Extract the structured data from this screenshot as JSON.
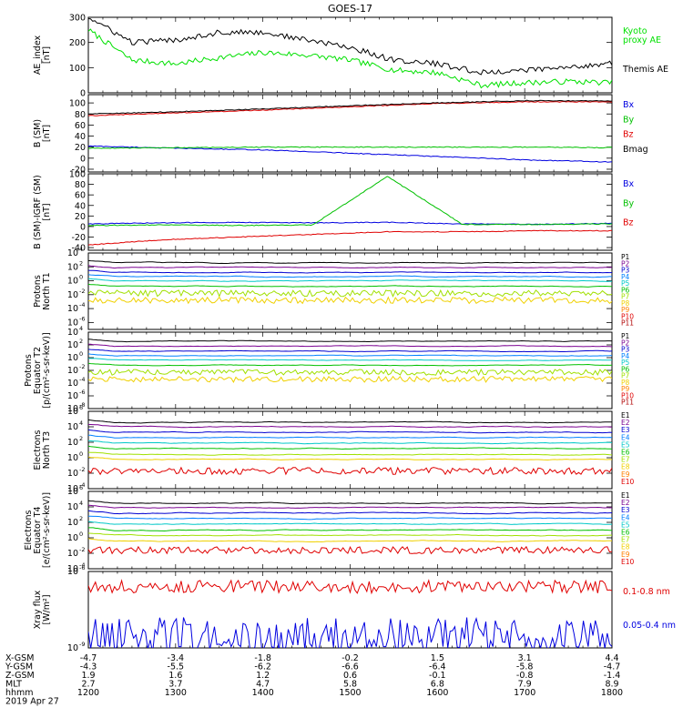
{
  "title": "GOES-17",
  "time_label": "hhmm",
  "date_label": "2019 Apr 27",
  "orbit": {
    "times": [
      "1200",
      "1300",
      "1400",
      "1500",
      "1600",
      "1700",
      "1800"
    ],
    "rows": [
      {
        "label": "X-GSM",
        "values": [
          "-4.7",
          "-3.4",
          "-1.8",
          "-0.2",
          "1.5",
          "3.1",
          "4.4"
        ]
      },
      {
        "label": "Y-GSM",
        "values": [
          "-4.3",
          "-5.5",
          "-6.2",
          "-6.6",
          "-6.4",
          "-5.8",
          "-4.7"
        ]
      },
      {
        "label": "Z-GSM",
        "values": [
          "1.9",
          "1.6",
          "1.2",
          "0.6",
          "-0.1",
          "-0.8",
          "-1.4"
        ]
      },
      {
        "label": "MLT",
        "values": [
          "2.7",
          "3.7",
          "4.7",
          "5.8",
          "6.8",
          "7.9",
          "8.9"
        ]
      }
    ]
  },
  "chart_data": [
    {
      "type": "line",
      "panel": "ae_index",
      "ylabel": "AE_index\n[nT]",
      "ylim": [
        0,
        300
      ],
      "yticks": [
        "0",
        "100",
        "200",
        "300"
      ],
      "x": [
        "12:00",
        "12:30",
        "13:00",
        "13:30",
        "14:00",
        "14:30",
        "15:00",
        "15:30",
        "16:00",
        "16:30",
        "17:00",
        "17:30",
        "18:00"
      ],
      "series": [
        {
          "name": "Kyoto\nproxy AE",
          "color": "#00e000",
          "values": [
            250,
            130,
            115,
            140,
            160,
            150,
            130,
            90,
            80,
            30,
            40,
            45,
            40
          ]
        },
        {
          "name": "Themis AE",
          "color": "#000000",
          "values": [
            300,
            200,
            210,
            240,
            240,
            210,
            180,
            130,
            115,
            80,
            90,
            100,
            120
          ]
        }
      ]
    },
    {
      "type": "line",
      "panel": "b_sm",
      "ylabel": "B (SM)\n[nT]",
      "ylim": [
        -25,
        115
      ],
      "yticks": [
        "-20",
        "0",
        "20",
        "40",
        "60",
        "80",
        "100"
      ],
      "x": [
        "12:00",
        "13:00",
        "14:00",
        "15:00",
        "16:00",
        "17:00",
        "18:00"
      ],
      "series": [
        {
          "name": "Bx",
          "color": "#0000e0",
          "values": [
            22,
            18,
            15,
            9,
            3,
            -3,
            -7
          ]
        },
        {
          "name": "By",
          "color": "#00c000",
          "values": [
            18,
            19,
            20,
            20,
            20,
            20,
            19
          ]
        },
        {
          "name": "Bz",
          "color": "#e00000",
          "values": [
            77,
            82,
            87,
            93,
            99,
            102,
            102
          ]
        },
        {
          "name": "Bmag",
          "color": "#000000",
          "values": [
            80,
            84,
            89,
            95,
            100,
            104,
            104
          ]
        }
      ]
    },
    {
      "type": "line",
      "panel": "b_minus_igrf",
      "ylabel": "B (SM)-IGRF (SM)\n[nT]",
      "ylim": [
        -45,
        100
      ],
      "yticks": [
        "-40",
        "-20",
        "0",
        "20",
        "40",
        "60",
        "80",
        "100"
      ],
      "x": [
        "12:00",
        "13:00",
        "14:00",
        "15:00",
        "15:30",
        "16:00",
        "17:00",
        "18:00"
      ],
      "series": [
        {
          "name": "Bx",
          "color": "#0000e0",
          "values": [
            5,
            7,
            8,
            7,
            8,
            5,
            4,
            6
          ]
        },
        {
          "name": "By",
          "color": "#00c000",
          "values": [
            2,
            3,
            2,
            3,
            95,
            4,
            4,
            5
          ]
        },
        {
          "name": "Bz",
          "color": "#e00000",
          "values": [
            -35,
            -25,
            -20,
            -15,
            -10,
            -10,
            -8,
            -8
          ]
        }
      ]
    },
    {
      "type": "line",
      "panel": "protons_t1",
      "ylabel": "Protons\nNorth T1",
      "scale": "log",
      "ylim_exp": [
        -7,
        4
      ],
      "ytick_exps": [
        4,
        2,
        0,
        -2,
        -4,
        -6
      ],
      "series": [
        {
          "name": "P1",
          "color": "#000000",
          "log_value": 2.6
        },
        {
          "name": "P2",
          "color": "#7a0090",
          "log_value": 1.9
        },
        {
          "name": "P3",
          "color": "#0000d0",
          "log_value": 1.2
        },
        {
          "name": "P4",
          "color": "#0080ff",
          "log_value": 0.6
        },
        {
          "name": "P5",
          "color": "#00c8c8",
          "log_value": 0.0
        },
        {
          "name": "P6",
          "color": "#00c000",
          "log_value": -0.8
        },
        {
          "name": "P7",
          "color": "#a0e000",
          "log_value": -1.8
        },
        {
          "name": "P8",
          "color": "#f0d000",
          "log_value": -2.8
        },
        {
          "name": "P9",
          "color": "#ff8000",
          "log_value": -99
        },
        {
          "name": "P10",
          "color": "#e00000",
          "log_value": -99
        },
        {
          "name": "P11",
          "color": "#b00000",
          "log_value": -99
        }
      ]
    },
    {
      "type": "line",
      "panel": "protons_t2",
      "ylabel": "Protons\nEquator T2\n[p/(cm²-s-sr-keV)]",
      "scale": "log",
      "ylim_exp": [
        -8,
        4
      ],
      "ytick_exps": [
        4,
        2,
        0,
        -2,
        -4,
        -6,
        -8
      ],
      "series": [
        {
          "name": "P1",
          "color": "#000000",
          "log_value": 2.6
        },
        {
          "name": "P2",
          "color": "#7a0090",
          "log_value": 1.8
        },
        {
          "name": "P3",
          "color": "#0000d0",
          "log_value": 1.0
        },
        {
          "name": "P4",
          "color": "#0080ff",
          "log_value": 0.3
        },
        {
          "name": "P5",
          "color": "#00c8c8",
          "log_value": -0.4
        },
        {
          "name": "P6",
          "color": "#00c000",
          "log_value": -1.2
        },
        {
          "name": "P7",
          "color": "#a0e000",
          "log_value": -2.3
        },
        {
          "name": "P8",
          "color": "#f0d000",
          "log_value": -3.4
        },
        {
          "name": "P9",
          "color": "#ff8000",
          "log_value": -99
        },
        {
          "name": "P10",
          "color": "#e00000",
          "log_value": -99
        },
        {
          "name": "P11",
          "color": "#b00000",
          "log_value": -99
        }
      ]
    },
    {
      "type": "line",
      "panel": "electrons_t3",
      "ylabel": "Electrons\nNorth T3",
      "scale": "log",
      "ylim_exp": [
        -4,
        6
      ],
      "ytick_exps": [
        6,
        4,
        2,
        0,
        -2,
        -4
      ],
      "series": [
        {
          "name": "E1",
          "color": "#000000",
          "log_value": 4.6
        },
        {
          "name": "E2",
          "color": "#7a0090",
          "log_value": 4.0
        },
        {
          "name": "E3",
          "color": "#0000d0",
          "log_value": 3.3
        },
        {
          "name": "E4",
          "color": "#0080ff",
          "log_value": 2.6
        },
        {
          "name": "E5",
          "color": "#00c8c8",
          "log_value": 1.9
        },
        {
          "name": "E6",
          "color": "#00c000",
          "log_value": 1.2
        },
        {
          "name": "E7",
          "color": "#a0e000",
          "log_value": 0.4
        },
        {
          "name": "E8",
          "color": "#f0d000",
          "log_value": -0.2
        },
        {
          "name": "E9",
          "color": "#ff8000",
          "log_value": -99
        },
        {
          "name": "E10",
          "color": "#e00000",
          "log_value": -1.7
        }
      ]
    },
    {
      "type": "line",
      "panel": "electrons_t4",
      "ylabel": "Electrons\nEquator T4\n[e/(cm²-s-sr-keV)]",
      "scale": "log",
      "ylim_exp": [
        -4,
        6
      ],
      "ytick_exps": [
        6,
        4,
        2,
        0,
        -2,
        -4
      ],
      "series": [
        {
          "name": "E1",
          "color": "#000000",
          "log_value": 4.5
        },
        {
          "name": "E2",
          "color": "#7a0090",
          "log_value": 3.9
        },
        {
          "name": "E3",
          "color": "#0000d0",
          "log_value": 3.2
        },
        {
          "name": "E4",
          "color": "#0080ff",
          "log_value": 2.5
        },
        {
          "name": "E5",
          "color": "#00c8c8",
          "log_value": 1.8
        },
        {
          "name": "E6",
          "color": "#00c000",
          "log_value": 1.0
        },
        {
          "name": "E7",
          "color": "#a0e000",
          "log_value": 0.3
        },
        {
          "name": "E8",
          "color": "#f0d000",
          "log_value": -0.4
        },
        {
          "name": "E9",
          "color": "#ff8000",
          "log_value": -99
        },
        {
          "name": "E10",
          "color": "#e00000",
          "log_value": -1.6
        }
      ]
    },
    {
      "type": "line",
      "panel": "xray_flux",
      "ylabel": "Xray flux\n[W/m²]",
      "scale": "log",
      "ylim_exp": [
        -9,
        -6
      ],
      "ytick_exps": [
        -6,
        -9
      ],
      "series": [
        {
          "name": "0.1-0.8 nm",
          "color": "#e00000",
          "log_value": -6.6
        },
        {
          "name": "0.05-0.4 nm",
          "color": "#0000e0",
          "log_value": -8.5
        }
      ]
    }
  ]
}
